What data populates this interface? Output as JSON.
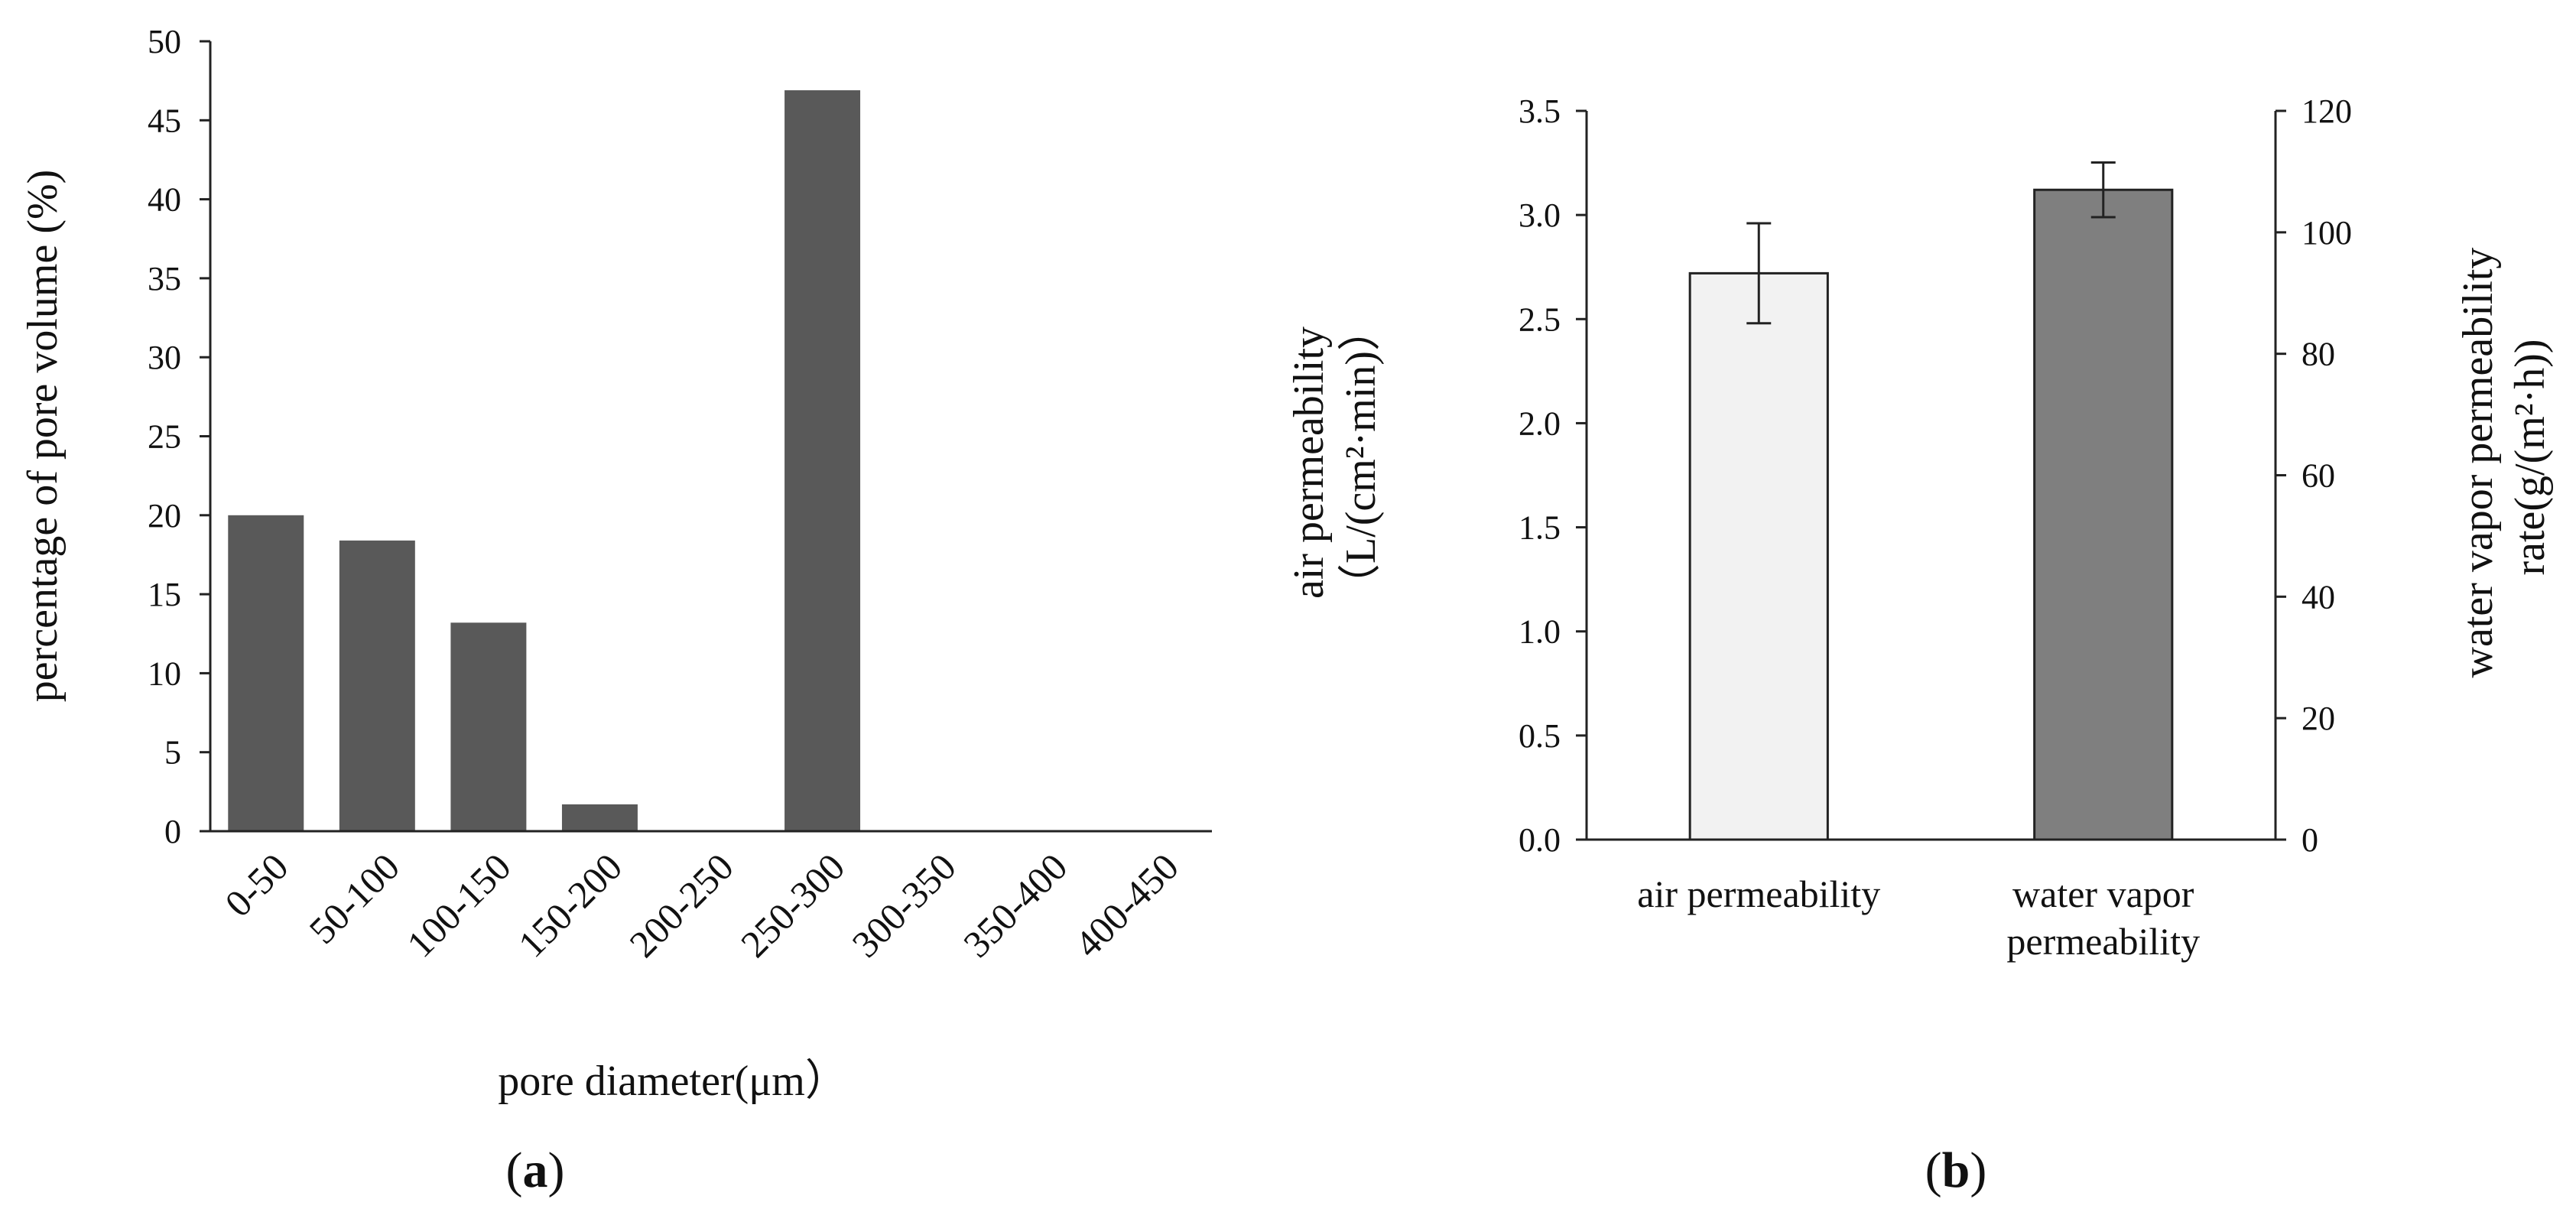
{
  "panels": {
    "a": {
      "label_open": "(",
      "label_letter": "a",
      "label_close": ")"
    },
    "b": {
      "label_open": "(",
      "label_letter": "b",
      "label_close": ")"
    }
  },
  "chart_data": [
    {
      "id": "a",
      "type": "bar",
      "title": "",
      "xlabel": "pore diameter(μm）",
      "ylabel": "percentage of pore volume (%)",
      "ylim": [
        0,
        50
      ],
      "yticks": [
        0,
        5,
        10,
        15,
        20,
        25,
        30,
        35,
        40,
        45,
        50
      ],
      "ytick_labels": [
        "0",
        "5",
        "10",
        "15",
        "20",
        "25",
        "30",
        "35",
        "40",
        "45",
        "50"
      ],
      "categories": [
        "0-50",
        "50-100",
        "100-150",
        "150-200",
        "200-250",
        "250-300",
        "300-350",
        "350-400",
        "400-450"
      ],
      "values": [
        20,
        18.4,
        13.2,
        1.7,
        0,
        46.9,
        0,
        0,
        0
      ],
      "grid": false,
      "colors": {
        "bar": "#595959"
      }
    },
    {
      "id": "b",
      "type": "bar",
      "title": "",
      "categories": [
        [
          "air permeability"
        ],
        [
          "water vapor",
          "permeability"
        ]
      ],
      "ylabel_left": [
        "air permeability",
        "（L/(cm²·min)）"
      ],
      "ylabel_right": [
        "water vapor permeability",
        "rate(g/(m²·h))"
      ],
      "ylim_left": [
        0,
        3.5
      ],
      "ylim_right": [
        0,
        120
      ],
      "yticks_left": [
        "0.0",
        "0.5",
        "1.0",
        "1.5",
        "2.0",
        "2.5",
        "3.0",
        "3.5"
      ],
      "yticks_right": [
        "0",
        "20",
        "40",
        "60",
        "80",
        "100",
        "120"
      ],
      "series": [
        {
          "axis": "left",
          "value": 2.72,
          "error": 0.24,
          "color": "#f2f2f2"
        },
        {
          "axis": "right",
          "value": 107,
          "error": 4.5,
          "color": "#7f7f7f"
        }
      ],
      "grid": false
    }
  ]
}
